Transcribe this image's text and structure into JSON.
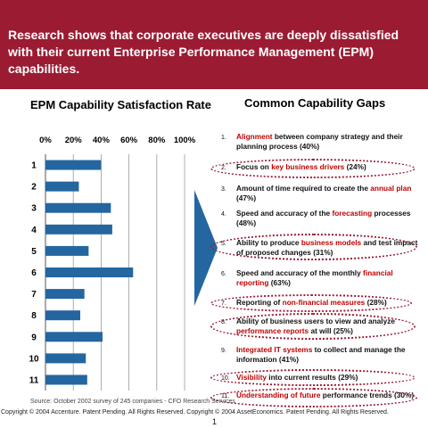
{
  "header": {
    "title": "Research shows that corporate executives are deeply dissatisfied with their current Enterprise Performance Management (EPM) capabilities.",
    "color": "#9b1b33"
  },
  "left_panel": {
    "title": "EPM Capability Satisfaction Rate"
  },
  "right_panel": {
    "title": "Common Capability Gaps"
  },
  "chart_data": {
    "type": "bar",
    "orientation": "horizontal",
    "title": "EPM Capability Satisfaction Rate",
    "categories": [
      "1",
      "2",
      "3",
      "4",
      "5",
      "6",
      "7",
      "8",
      "9",
      "10",
      "11"
    ],
    "values": [
      40,
      24,
      47,
      48,
      31,
      63,
      28,
      25,
      41,
      29,
      30
    ],
    "x_ticks": [
      "0%",
      "20%",
      "40%",
      "60%",
      "80%",
      "100%"
    ],
    "xlim": [
      0,
      100
    ],
    "grid": true,
    "bar_color": "#2466a0"
  },
  "gaps": [
    {
      "num": "1.",
      "parts": [
        {
          "t": "Alignment",
          "h": true
        },
        {
          "t": " between company strategy and their planning process (40%)"
        }
      ],
      "circled": false
    },
    {
      "num": "2.",
      "parts": [
        {
          "t": "Focus on "
        },
        {
          "t": "key business drivers",
          "h": true
        },
        {
          "t": " (24%)"
        }
      ],
      "circled": true
    },
    {
      "num": "3.",
      "parts": [
        {
          "t": "Amount of time required to create the "
        },
        {
          "t": "annual plan",
          "h": true
        },
        {
          "t": " (47%)"
        }
      ],
      "circled": false
    },
    {
      "num": "4.",
      "parts": [
        {
          "t": "Speed and accuracy of the "
        },
        {
          "t": "forecasting",
          "h": true
        },
        {
          "t": " processes (48%)"
        }
      ],
      "circled": false
    },
    {
      "num": "5.",
      "parts": [
        {
          "t": "Ability to produce "
        },
        {
          "t": "business models",
          "h": true
        },
        {
          "t": " and test impact of proposed changes (31%)"
        }
      ],
      "circled": true
    },
    {
      "num": "6.",
      "parts": [
        {
          "t": "Speed and accuracy of the monthly "
        },
        {
          "t": "financial reporting",
          "h": true
        },
        {
          "t": " (63%)"
        }
      ],
      "circled": false
    },
    {
      "num": "7.",
      "parts": [
        {
          "t": "Reporting of "
        },
        {
          "t": "non-financial measures",
          "h": true
        },
        {
          "t": " (28%)"
        }
      ],
      "circled": true
    },
    {
      "num": "8.",
      "parts": [
        {
          "t": "Ability of business users to view and analyze "
        },
        {
          "t": "performance reports",
          "h": true
        },
        {
          "t": " at will (25%)"
        }
      ],
      "circled": true
    },
    {
      "num": "9.",
      "parts": [
        {
          "t": "Integrated IT systems",
          "h": true
        },
        {
          "t": " to collect and manage the information (41%)"
        }
      ],
      "circled": false
    },
    {
      "num": "10.",
      "parts": [
        {
          "t": "Visibility",
          "h": true
        },
        {
          "t": " into current results (29%)"
        }
      ],
      "circled": true
    },
    {
      "num": "11.",
      "parts": [
        {
          "t": "Understanding of future",
          "h": true
        },
        {
          "t": " performance trends (30%)"
        }
      ],
      "circled": true
    }
  ],
  "footer": {
    "source": "Source: October 2002 survey of 245 companies - CFO Research Services",
    "copyright": "Copyright © 2004  Accenture. Patent Pending. All Rights Reserved. Copyright © 2004 AssetEconomics. Patent Pending. All Rights Reserved.",
    "page": "1"
  }
}
